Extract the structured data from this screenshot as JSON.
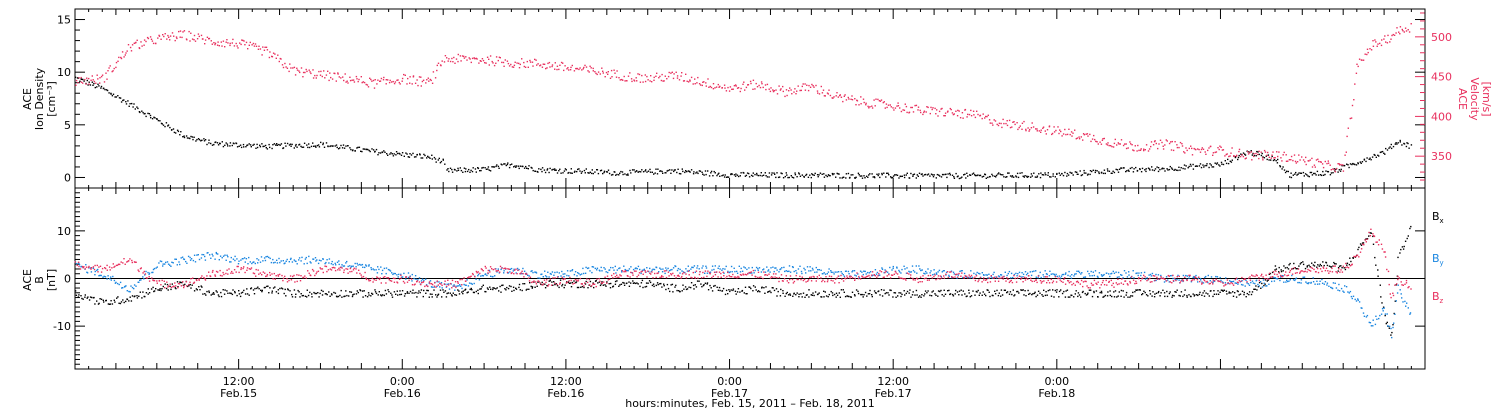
{
  "chart_data": [
    {
      "type": "scatter",
      "panel": "top",
      "left_axis": {
        "label_lines": [
          "ACE",
          "Ion Density",
          "[cm⁻³]"
        ],
        "ylim": [
          -1,
          16
        ],
        "ticks": [
          0,
          5,
          10,
          15
        ],
        "tick_labels": [
          "0",
          "5",
          "10",
          "15"
        ],
        "color": "#000000"
      },
      "right_axis": {
        "label_lines": [
          "ACE",
          "Velocity",
          "[km/s]"
        ],
        "ylim": [
          310,
          535
        ],
        "ticks": [
          350,
          400,
          450,
          500
        ],
        "tick_labels": [
          "350",
          "400",
          "450",
          "500"
        ],
        "color": "#e8305e"
      },
      "series": [
        {
          "color": "#000000",
          "axis": "left",
          "points": [
            [
              0,
              9.5
            ],
            [
              2,
              8.5
            ],
            [
              4,
              7
            ],
            [
              6,
              5.5
            ],
            [
              8,
              4
            ],
            [
              10,
              3.3
            ],
            [
              14,
              3
            ],
            [
              18,
              3.2
            ],
            [
              22,
              2.5
            ],
            [
              26,
              2
            ],
            [
              27,
              1.5
            ],
            [
              27.2,
              0.7
            ],
            [
              30,
              0.8
            ],
            [
              32,
              1.3
            ],
            [
              34,
              0.8
            ],
            [
              36,
              0.7
            ],
            [
              40,
              0.5
            ],
            [
              44,
              0.7
            ],
            [
              48,
              0.3
            ],
            [
              56,
              0.25
            ],
            [
              64,
              0.2
            ],
            [
              72,
              0.3
            ],
            [
              76,
              0.7
            ],
            [
              80,
              0.9
            ],
            [
              84,
              1.3
            ],
            [
              86,
              2.5
            ],
            [
              88,
              1.8
            ],
            [
              89,
              0.3
            ],
            [
              92,
              0.5
            ],
            [
              94,
              1.5
            ],
            [
              96,
              2.5
            ],
            [
              97,
              3.5
            ],
            [
              98,
              3
            ]
          ]
        },
        {
          "color": "#e8305e",
          "axis": "right",
          "points": [
            [
              0,
              445
            ],
            [
              2,
              448
            ],
            [
              4,
              488
            ],
            [
              6,
              498
            ],
            [
              8,
              503
            ],
            [
              10,
              495
            ],
            [
              12,
              492
            ],
            [
              14,
              482
            ],
            [
              16,
              458
            ],
            [
              18,
              453
            ],
            [
              20,
              448
            ],
            [
              22,
              442
            ],
            [
              24,
              448
            ],
            [
              26,
              443
            ],
            [
              27,
              473
            ],
            [
              30,
              472
            ],
            [
              32,
              468
            ],
            [
              34,
              467
            ],
            [
              36,
              462
            ],
            [
              38,
              458
            ],
            [
              40,
              452
            ],
            [
              42,
              448
            ],
            [
              44,
              452
            ],
            [
              46,
              444
            ],
            [
              48,
              436
            ],
            [
              50,
              441
            ],
            [
              52,
              432
            ],
            [
              54,
              438
            ],
            [
              56,
              424
            ],
            [
              58,
              418
            ],
            [
              60,
              414
            ],
            [
              62,
              408
            ],
            [
              64,
              406
            ],
            [
              66,
              402
            ],
            [
              68,
              392
            ],
            [
              70,
              388
            ],
            [
              72,
              382
            ],
            [
              74,
              376
            ],
            [
              76,
              368
            ],
            [
              78,
              362
            ],
            [
              80,
              366
            ],
            [
              82,
              358
            ],
            [
              84,
              358
            ],
            [
              86,
              352
            ],
            [
              88,
              352
            ],
            [
              90,
              346
            ],
            [
              92,
              338
            ],
            [
              93,
              336
            ],
            [
              94,
              462
            ],
            [
              95,
              490
            ],
            [
              96,
              496
            ],
            [
              97,
              508
            ],
            [
              98,
              514
            ]
          ]
        }
      ]
    },
    {
      "type": "scatter",
      "panel": "bottom",
      "left_axis": {
        "label_lines": [
          "ACE",
          "B",
          "[nT]"
        ],
        "ylim": [
          -19,
          19
        ],
        "ticks": [
          -10,
          0,
          10
        ],
        "tick_labels": [
          "-10",
          "0",
          "10"
        ],
        "color": "#000000"
      },
      "zero_line": true,
      "series": [
        {
          "name": "Bx",
          "name_base": "B",
          "name_sub": "x",
          "color": "#000000",
          "points": [
            [
              0,
              -3
            ],
            [
              2,
              -5
            ],
            [
              4,
              -4
            ],
            [
              6,
              -2
            ],
            [
              8,
              -1
            ],
            [
              10,
              -3
            ],
            [
              12,
              -3
            ],
            [
              14,
              -2
            ],
            [
              16,
              -3
            ],
            [
              18,
              -3
            ],
            [
              20,
              -3
            ],
            [
              22,
              -3
            ],
            [
              24,
              -3
            ],
            [
              26,
              -3
            ],
            [
              28,
              -3
            ],
            [
              30,
              -2
            ],
            [
              32,
              -2
            ],
            [
              34,
              -1
            ],
            [
              36,
              -1
            ],
            [
              38,
              -1
            ],
            [
              40,
              -1
            ],
            [
              42,
              -1
            ],
            [
              44,
              -2
            ],
            [
              46,
              -1
            ],
            [
              48,
              -3
            ],
            [
              50,
              -2
            ],
            [
              52,
              -3
            ],
            [
              54,
              -3
            ],
            [
              56,
              -3
            ],
            [
              58,
              -3
            ],
            [
              60,
              -3
            ],
            [
              62,
              -3
            ],
            [
              64,
              -3
            ],
            [
              66,
              -3
            ],
            [
              68,
              -3
            ],
            [
              70,
              -3
            ],
            [
              72,
              -3
            ],
            [
              74,
              -3
            ],
            [
              76,
              -3
            ],
            [
              78,
              -3
            ],
            [
              80,
              -3
            ],
            [
              82,
              -3
            ],
            [
              84,
              -3
            ],
            [
              86,
              -3
            ],
            [
              87,
              -1
            ],
            [
              88,
              2
            ],
            [
              90,
              3
            ],
            [
              92,
              3
            ],
            [
              93,
              2
            ],
            [
              94,
              6
            ],
            [
              95,
              10
            ],
            [
              96,
              -8
            ],
            [
              96.5,
              -12
            ],
            [
              97,
              4
            ],
            [
              98,
              12
            ]
          ]
        },
        {
          "name": "By",
          "name_base": "B",
          "name_sub": "y",
          "color": "#1a86e0",
          "points": [
            [
              0,
              3
            ],
            [
              2,
              1
            ],
            [
              4,
              -2
            ],
            [
              6,
              3
            ],
            [
              8,
              4
            ],
            [
              10,
              5
            ],
            [
              12,
              4
            ],
            [
              14,
              4
            ],
            [
              16,
              4
            ],
            [
              18,
              4
            ],
            [
              20,
              3
            ],
            [
              22,
              2
            ],
            [
              24,
              1
            ],
            [
              26,
              -1
            ],
            [
              28,
              -2
            ],
            [
              30,
              1
            ],
            [
              32,
              2
            ],
            [
              34,
              1
            ],
            [
              36,
              1
            ],
            [
              38,
              2
            ],
            [
              40,
              2
            ],
            [
              42,
              2
            ],
            [
              44,
              2
            ],
            [
              46,
              2
            ],
            [
              48,
              2
            ],
            [
              50,
              2
            ],
            [
              52,
              2
            ],
            [
              54,
              2
            ],
            [
              56,
              1
            ],
            [
              58,
              1
            ],
            [
              60,
              2
            ],
            [
              62,
              2
            ],
            [
              64,
              1
            ],
            [
              66,
              1
            ],
            [
              68,
              1
            ],
            [
              70,
              1
            ],
            [
              72,
              1
            ],
            [
              74,
              1
            ],
            [
              76,
              1
            ],
            [
              78,
              1
            ],
            [
              80,
              0
            ],
            [
              82,
              0
            ],
            [
              84,
              0
            ],
            [
              86,
              -1
            ],
            [
              87,
              -1
            ],
            [
              88,
              0
            ],
            [
              90,
              0
            ],
            [
              92,
              -1
            ],
            [
              93,
              -2
            ],
            [
              94,
              -4
            ],
            [
              95,
              -10
            ],
            [
              96,
              -6
            ],
            [
              96.5,
              -12
            ],
            [
              97,
              -2
            ],
            [
              98,
              -8
            ]
          ]
        },
        {
          "name": "Bz",
          "name_base": "B",
          "name_sub": "z",
          "color": "#e8305e",
          "points": [
            [
              0,
              3
            ],
            [
              2,
              2
            ],
            [
              4,
              4
            ],
            [
              6,
              -1
            ],
            [
              8,
              -1
            ],
            [
              10,
              1
            ],
            [
              12,
              2
            ],
            [
              14,
              1
            ],
            [
              16,
              0
            ],
            [
              18,
              2
            ],
            [
              20,
              2
            ],
            [
              22,
              0
            ],
            [
              24,
              0
            ],
            [
              26,
              -1
            ],
            [
              28,
              -1
            ],
            [
              30,
              2
            ],
            [
              32,
              2
            ],
            [
              34,
              -1
            ],
            [
              36,
              0
            ],
            [
              38,
              -1
            ],
            [
              40,
              1
            ],
            [
              42,
              1
            ],
            [
              44,
              1
            ],
            [
              46,
              1
            ],
            [
              48,
              1
            ],
            [
              50,
              1
            ],
            [
              52,
              0
            ],
            [
              54,
              0
            ],
            [
              56,
              0
            ],
            [
              58,
              1
            ],
            [
              60,
              1
            ],
            [
              62,
              0
            ],
            [
              64,
              1
            ],
            [
              66,
              0
            ],
            [
              68,
              0
            ],
            [
              70,
              0
            ],
            [
              72,
              0
            ],
            [
              74,
              -1
            ],
            [
              76,
              -1
            ],
            [
              78,
              0
            ],
            [
              80,
              0
            ],
            [
              82,
              0
            ],
            [
              84,
              -1
            ],
            [
              86,
              0
            ],
            [
              88,
              1
            ],
            [
              90,
              2
            ],
            [
              92,
              2
            ],
            [
              93,
              2
            ],
            [
              94,
              5
            ],
            [
              95,
              10
            ],
            [
              96,
              6
            ],
            [
              96.5,
              -4
            ],
            [
              97,
              0
            ],
            [
              98,
              -2
            ]
          ]
        }
      ]
    }
  ],
  "x_axis": {
    "xlim": [
      0,
      99
    ],
    "major_ticks": [
      12,
      24,
      36,
      48,
      60,
      72,
      84
    ],
    "tick_labels": [
      {
        "x": 12,
        "line1": "12:00",
        "line2": "Feb.15"
      },
      {
        "x": 24,
        "line1": "0:00",
        "line2": "Feb.16"
      },
      {
        "x": 36,
        "line1": "12:00",
        "line2": "Feb.16"
      },
      {
        "x": 48,
        "line1": "0:00",
        "line2": "Feb.17"
      },
      {
        "x": 60,
        "line1": "12:00",
        "line2": "Feb.17"
      },
      {
        "x": 72,
        "line1": "0:00",
        "line2": "Feb.18"
      }
    ],
    "title": "hours:minutes, Feb. 15, 2011 – Feb. 18, 2011"
  }
}
